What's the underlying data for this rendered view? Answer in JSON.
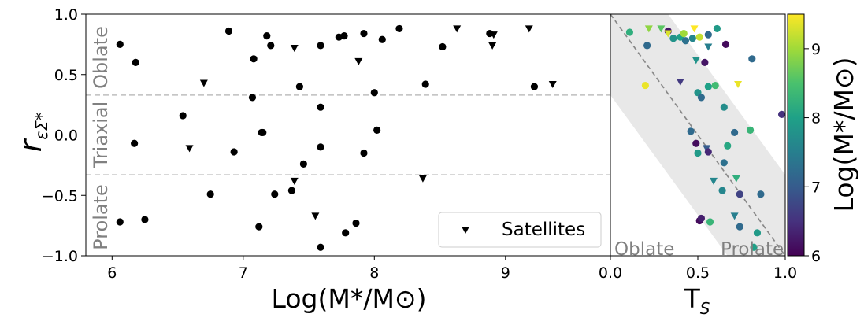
{
  "chart_data": [
    {
      "type": "scatter",
      "ylabel_main": "r",
      "ylabel_sub": "εΣ*",
      "xlabel": "Log(M*/M⊙)",
      "xlim": [
        5.8,
        9.8
      ],
      "ylim": [
        -1.0,
        1.0
      ],
      "xticks": [
        "6",
        "7",
        "8",
        "9"
      ],
      "yticks": [
        "1.0",
        "0.5",
        "0.0",
        "−0.5",
        "−1.0"
      ],
      "thresholds": [
        0.33,
        -0.33
      ],
      "region_labels": {
        "top": "Oblate",
        "middle": "Triaxial",
        "bottom": "Prolate"
      },
      "legend": {
        "label": "Satellites",
        "placement": "lower right"
      },
      "series": [
        {
          "kind": "central",
          "marker": "circle",
          "points": [
            [
              6.06,
              0.75
            ],
            [
              6.18,
              0.6
            ],
            [
              6.89,
              0.86
            ],
            [
              7.08,
              0.63
            ],
            [
              7.18,
              0.82
            ],
            [
              7.21,
              0.74
            ],
            [
              7.43,
              0.4
            ],
            [
              7.59,
              0.74
            ],
            [
              7.73,
              0.81
            ],
            [
              7.77,
              0.82
            ],
            [
              7.92,
              0.84
            ],
            [
              8.06,
              0.79
            ],
            [
              8.19,
              0.88
            ],
            [
              8.39,
              0.42
            ],
            [
              8.52,
              0.73
            ],
            [
              8.88,
              0.84
            ],
            [
              9.22,
              0.4
            ],
            [
              6.54,
              0.16
            ],
            [
              7.07,
              0.31
            ],
            [
              7.14,
              0.02
            ],
            [
              7.15,
              0.02
            ],
            [
              7.59,
              0.23
            ],
            [
              8.0,
              0.35
            ],
            [
              8.02,
              0.04
            ],
            [
              6.17,
              -0.07
            ],
            [
              6.93,
              -0.14
            ],
            [
              7.46,
              -0.24
            ],
            [
              7.59,
              -0.1
            ],
            [
              7.92,
              -0.15
            ],
            [
              6.75,
              -0.49
            ],
            [
              7.24,
              -0.49
            ],
            [
              7.37,
              -0.46
            ],
            [
              6.06,
              -0.72
            ],
            [
              6.25,
              -0.7
            ],
            [
              7.12,
              -0.76
            ],
            [
              7.59,
              -0.93
            ],
            [
              7.78,
              -0.81
            ],
            [
              7.86,
              -0.73
            ]
          ]
        },
        {
          "kind": "satellite",
          "marker": "triangle-down",
          "points": [
            [
              6.7,
              0.43
            ],
            [
              7.39,
              0.72
            ],
            [
              7.88,
              0.61
            ],
            [
              8.63,
              0.88
            ],
            [
              8.9,
              0.74
            ],
            [
              8.91,
              0.83
            ],
            [
              9.18,
              0.88
            ],
            [
              9.36,
              0.42
            ],
            [
              6.59,
              -0.11
            ],
            [
              7.39,
              -0.38
            ],
            [
              7.55,
              -0.67
            ],
            [
              8.37,
              -0.36
            ]
          ]
        }
      ]
    },
    {
      "type": "scatter",
      "xlabel": "T",
      "xlabel_sub": "S",
      "xlim": [
        0,
        1
      ],
      "ylim": [
        -1.0,
        1.0
      ],
      "xticks": [
        "0.0",
        "0.5",
        "1.0"
      ],
      "region_labels": {
        "left": "Oblate",
        "right": "Prolate"
      },
      "colorbar": {
        "label": "Log(M*/M⊙)",
        "range": [
          6,
          9.5
        ],
        "ticks": [
          "6",
          "7",
          "8",
          "9"
        ],
        "colormap": "viridis",
        "colors": [
          "#440154",
          "#46327e",
          "#365c8d",
          "#277f8e",
          "#1fa187",
          "#4ac16d",
          "#a0da39",
          "#fde725"
        ]
      },
      "points": [
        {
          "x": 0.11,
          "y": 0.85,
          "c": 8.2,
          "m": "o"
        },
        {
          "x": 0.22,
          "y": 0.88,
          "c": 8.9,
          "m": "v"
        },
        {
          "x": 0.29,
          "y": 0.88,
          "c": 8.6,
          "m": "v"
        },
        {
          "x": 0.33,
          "y": 0.86,
          "c": 6.2,
          "m": "o"
        },
        {
          "x": 0.33,
          "y": 0.84,
          "c": 9.3,
          "m": "v"
        },
        {
          "x": 0.36,
          "y": 0.8,
          "c": 7.8,
          "m": "o"
        },
        {
          "x": 0.4,
          "y": 0.81,
          "c": 8.0,
          "m": "o"
        },
        {
          "x": 0.42,
          "y": 0.84,
          "c": 9.0,
          "m": "o"
        },
        {
          "x": 0.43,
          "y": 0.78,
          "c": 7.3,
          "m": "o"
        },
        {
          "x": 0.47,
          "y": 0.8,
          "c": 7.6,
          "m": "o"
        },
        {
          "x": 0.48,
          "y": 0.88,
          "c": 9.5,
          "m": "v"
        },
        {
          "x": 0.51,
          "y": 0.81,
          "c": 9.2,
          "m": "o"
        },
        {
          "x": 0.56,
          "y": 0.83,
          "c": 7.2,
          "m": "o"
        },
        {
          "x": 0.61,
          "y": 0.88,
          "c": 7.9,
          "m": "o"
        },
        {
          "x": 0.66,
          "y": 0.75,
          "c": 6.1,
          "m": "o"
        },
        {
          "x": 0.21,
          "y": 0.74,
          "c": 7.2,
          "m": "o"
        },
        {
          "x": 0.56,
          "y": 0.73,
          "c": 7.5,
          "m": "v"
        },
        {
          "x": 0.49,
          "y": 0.62,
          "c": 7.8,
          "m": "v"
        },
        {
          "x": 0.54,
          "y": 0.6,
          "c": 6.2,
          "m": "o"
        },
        {
          "x": 0.81,
          "y": 0.63,
          "c": 7.2,
          "m": "o"
        },
        {
          "x": 0.4,
          "y": 0.44,
          "c": 6.6,
          "m": "v"
        },
        {
          "x": 0.2,
          "y": 0.41,
          "c": 9.4,
          "m": "o"
        },
        {
          "x": 0.56,
          "y": 0.4,
          "c": 8.0,
          "m": "o"
        },
        {
          "x": 0.6,
          "y": 0.41,
          "c": 8.4,
          "m": "o"
        },
        {
          "x": 0.73,
          "y": 0.42,
          "c": 9.4,
          "m": "v"
        },
        {
          "x": 0.5,
          "y": 0.35,
          "c": 7.8,
          "m": "o"
        },
        {
          "x": 0.52,
          "y": 0.31,
          "c": 7.2,
          "m": "o"
        },
        {
          "x": 0.65,
          "y": 0.23,
          "c": 7.7,
          "m": "o"
        },
        {
          "x": 0.98,
          "y": 0.17,
          "c": 6.5,
          "m": "o"
        },
        {
          "x": 0.46,
          "y": 0.03,
          "c": 7.2,
          "m": "o"
        },
        {
          "x": 0.71,
          "y": 0.02,
          "c": 7.2,
          "m": "o"
        },
        {
          "x": 0.8,
          "y": 0.04,
          "c": 8.3,
          "m": "o"
        },
        {
          "x": 0.49,
          "y": -0.07,
          "c": 6.1,
          "m": "o"
        },
        {
          "x": 0.55,
          "y": -0.11,
          "c": 7.0,
          "m": "v"
        },
        {
          "x": 0.67,
          "y": -0.09,
          "c": 8.1,
          "m": "o"
        },
        {
          "x": 0.5,
          "y": -0.15,
          "c": 7.9,
          "m": "o"
        },
        {
          "x": 0.56,
          "y": -0.14,
          "c": 6.4,
          "m": "o"
        },
        {
          "x": 0.65,
          "y": -0.23,
          "c": 7.3,
          "m": "o"
        },
        {
          "x": 0.59,
          "y": -0.38,
          "c": 7.6,
          "m": "v"
        },
        {
          "x": 0.72,
          "y": -0.36,
          "c": 8.2,
          "m": "v"
        },
        {
          "x": 0.64,
          "y": -0.46,
          "c": 7.6,
          "m": "o"
        },
        {
          "x": 0.74,
          "y": -0.49,
          "c": 6.7,
          "m": "o"
        },
        {
          "x": 0.86,
          "y": -0.49,
          "c": 7.2,
          "m": "o"
        },
        {
          "x": 0.71,
          "y": -0.67,
          "c": 7.5,
          "m": "v"
        },
        {
          "x": 0.51,
          "y": -0.71,
          "c": 6.1,
          "m": "o"
        },
        {
          "x": 0.52,
          "y": -0.69,
          "c": 6.3,
          "m": "o"
        },
        {
          "x": 0.57,
          "y": -0.72,
          "c": 8.3,
          "m": "o"
        },
        {
          "x": 0.74,
          "y": -0.76,
          "c": 7.2,
          "m": "o"
        },
        {
          "x": 0.84,
          "y": -0.81,
          "c": 7.9,
          "m": "o"
        },
        {
          "x": 0.82,
          "y": -0.93,
          "c": 8.0,
          "m": "o"
        }
      ]
    }
  ]
}
